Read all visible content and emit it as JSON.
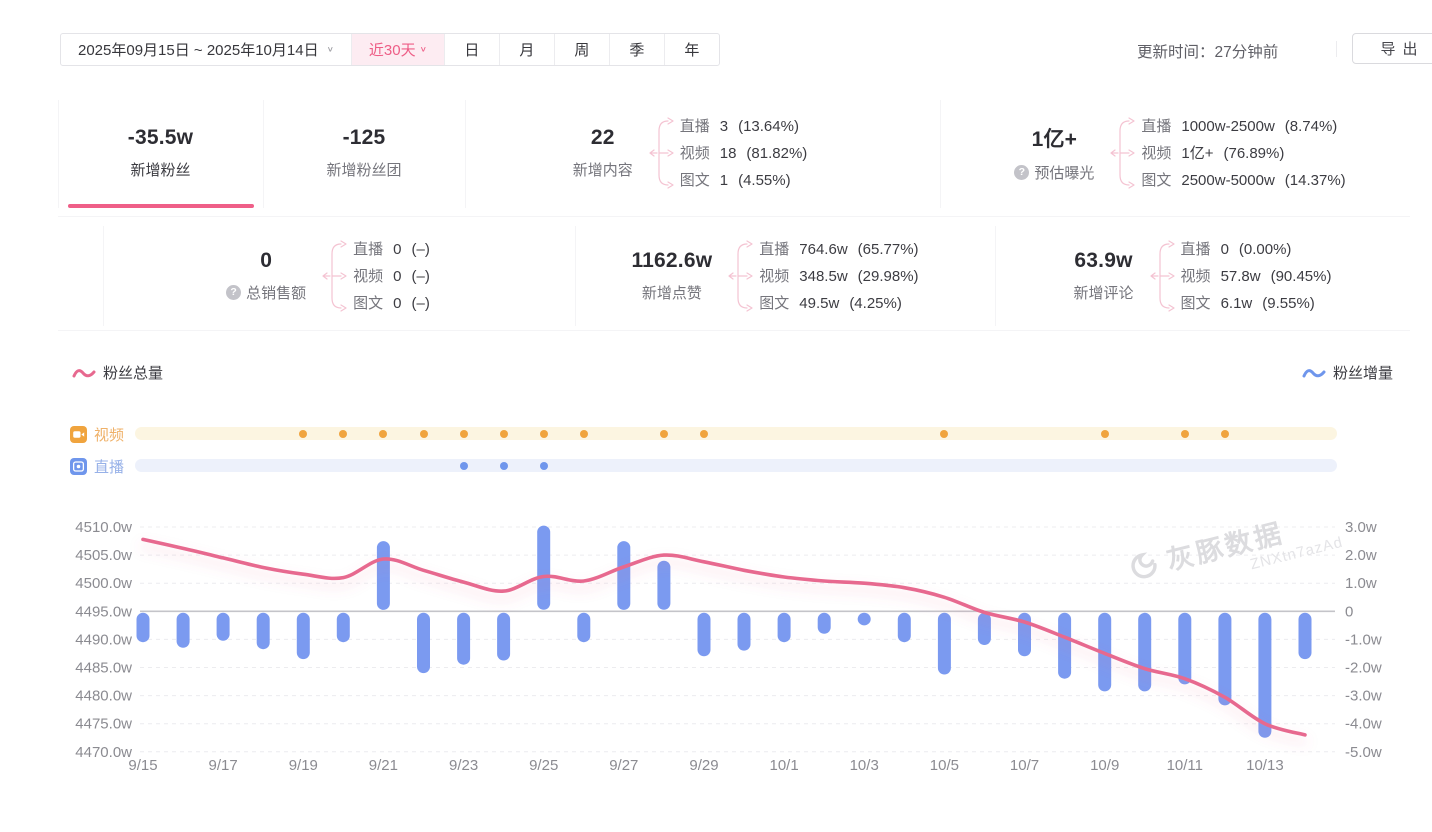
{
  "header": {
    "date_range": "2025年09月15日 ~ 2025年10月14日",
    "quick_range": "近30天",
    "period_tabs": [
      "日",
      "月",
      "周",
      "季",
      "年"
    ],
    "update_time": "更新时间：27分钟前",
    "export_label": "导出"
  },
  "stats": {
    "row1": [
      {
        "id": "new-fans",
        "value": "-35.5w",
        "label": "新增粉丝",
        "active": true
      },
      {
        "id": "new-fans-club",
        "value": "-125",
        "label": "新增粉丝团"
      },
      {
        "id": "new-content",
        "value": "22",
        "label": "新增内容",
        "breakdown": [
          {
            "name": "直播",
            "value": "3",
            "pct": "(13.64%)"
          },
          {
            "name": "视频",
            "value": "18",
            "pct": "(81.82%)"
          },
          {
            "name": "图文",
            "value": "1",
            "pct": "(4.55%)"
          }
        ]
      },
      {
        "id": "est-exposure",
        "value": "1亿+",
        "label": "预估曝光",
        "help": true,
        "breakdown": [
          {
            "name": "直播",
            "value": "1000w-2500w",
            "pct": "(8.74%)"
          },
          {
            "name": "视频",
            "value": "1亿+",
            "pct": "(76.89%)"
          },
          {
            "name": "图文",
            "value": "2500w-5000w",
            "pct": "(14.37%)"
          }
        ]
      }
    ],
    "row2": [
      {
        "id": "total-sales",
        "value": "0",
        "label": "总销售额",
        "help": true,
        "breakdown": [
          {
            "name": "直播",
            "value": "0",
            "pct": "(–)"
          },
          {
            "name": "视频",
            "value": "0",
            "pct": "(–)"
          },
          {
            "name": "图文",
            "value": "0",
            "pct": "(–)"
          }
        ]
      },
      {
        "id": "new-likes",
        "value": "1162.6w",
        "label": "新增点赞",
        "breakdown": [
          {
            "name": "直播",
            "value": "764.6w",
            "pct": "(65.77%)"
          },
          {
            "name": "视频",
            "value": "348.5w",
            "pct": "(29.98%)"
          },
          {
            "name": "图文",
            "value": "49.5w",
            "pct": "(4.25%)"
          }
        ]
      },
      {
        "id": "new-comments",
        "value": "63.9w",
        "label": "新增评论",
        "breakdown": [
          {
            "name": "直播",
            "value": "0",
            "pct": "(0.00%)"
          },
          {
            "name": "视频",
            "value": "57.8w",
            "pct": "(90.45%)"
          },
          {
            "name": "图文",
            "value": "6.1w",
            "pct": "(9.55%)"
          }
        ]
      }
    ]
  },
  "legend": {
    "left": "粉丝总量",
    "right": "粉丝增量"
  },
  "timeline": {
    "video": {
      "label": "视频",
      "color": "#f0a43e",
      "band_color": "#fcf5e1",
      "dates": [
        "9/19",
        "9/20",
        "9/21",
        "9/22",
        "9/23",
        "9/24",
        "9/25",
        "9/26",
        "9/28",
        "9/29",
        "10/5",
        "10/9",
        "10/11",
        "10/12"
      ]
    },
    "live": {
      "label": "直播",
      "color": "#6f96ec",
      "band_color": "#edf1fb",
      "dates": [
        "9/23",
        "9/24",
        "9/25"
      ]
    }
  },
  "watermark": {
    "brand": "灰豚数据",
    "code": "ZNXtn7azAd"
  },
  "chart_data": {
    "type": "line+bar",
    "x": [
      "9/15",
      "9/16",
      "9/17",
      "9/18",
      "9/19",
      "9/20",
      "9/21",
      "9/22",
      "9/23",
      "9/24",
      "9/25",
      "9/26",
      "9/27",
      "9/28",
      "9/29",
      "9/30",
      "10/1",
      "10/2",
      "10/3",
      "10/4",
      "10/5",
      "10/6",
      "10/7",
      "10/8",
      "10/9",
      "10/10",
      "10/11",
      "10/12",
      "10/13",
      "10/14"
    ],
    "x_tick_labels": [
      "9/15",
      "9/17",
      "9/19",
      "9/21",
      "9/23",
      "9/25",
      "9/27",
      "9/29",
      "10/1",
      "10/3",
      "10/5",
      "10/7",
      "10/9",
      "10/11",
      "10/13"
    ],
    "series": [
      {
        "name": "粉丝总量",
        "type": "line",
        "axis": "left",
        "color": "#e7698f",
        "values": [
          4507.8,
          4506.2,
          4504.5,
          4502.8,
          4501.6,
          4501.0,
          4504.3,
          4502.3,
          4500.2,
          4498.6,
          4501.2,
          4500.4,
          4502.9,
          4505.0,
          4503.8,
          4502.3,
          4501.1,
          4500.4,
          4500.0,
          4499.2,
          4497.5,
          4494.8,
          4493.1,
          4490.4,
          4487.5,
          4484.8,
          4483.0,
          4479.7,
          4475.0,
          4473.0
        ]
      },
      {
        "name": "粉丝增量",
        "type": "bar",
        "axis": "right",
        "color": "#7b9af0",
        "values": [
          -1.1,
          -1.3,
          -1.05,
          -1.35,
          -1.7,
          -1.1,
          2.5,
          -2.2,
          -1.9,
          -1.75,
          3.05,
          -1.1,
          2.5,
          1.8,
          -1.6,
          -1.4,
          -1.1,
          -0.8,
          -0.5,
          -1.1,
          -2.25,
          -1.2,
          -1.6,
          -2.4,
          -2.85,
          -2.85,
          -2.6,
          -3.35,
          -4.5,
          -1.7
        ]
      }
    ],
    "left_axis": {
      "unit": "w",
      "min": 4470,
      "max": 4510,
      "step": 5,
      "ticks": [
        "4510.0w",
        "4505.0w",
        "4500.0w",
        "4495.0w",
        "4490.0w",
        "4485.0w",
        "4480.0w",
        "4475.0w",
        "4470.0w"
      ]
    },
    "right_axis": {
      "unit": "w",
      "min": -5,
      "max": 3,
      "step": 1,
      "ticks": [
        "3.0w",
        "2.0w",
        "1.0w",
        "0",
        "-1.0w",
        "-2.0w",
        "-3.0w",
        "-4.0w",
        "-5.0w"
      ]
    },
    "grid": "dashed-horizontal, solid zero line"
  }
}
